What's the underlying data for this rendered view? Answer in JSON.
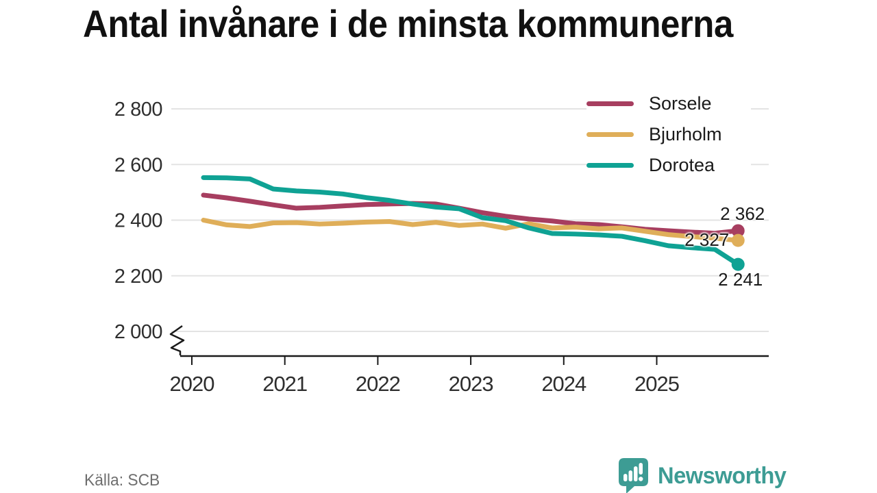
{
  "title": "Antal invånare i de minsta kommunerna",
  "source": "Källa: SCB",
  "branding": {
    "logo_text": "Newsworthy",
    "logo_color": "#3d9c94"
  },
  "chart_data": {
    "type": "line",
    "title": "Antal invånare i de minsta kommunerna",
    "grid": "horizontal",
    "legend_position": "top-right",
    "x": [
      2020.125,
      2020.375,
      2020.625,
      2020.875,
      2021.125,
      2021.375,
      2021.625,
      2021.875,
      2022.125,
      2022.375,
      2022.625,
      2022.875,
      2023.125,
      2023.375,
      2023.625,
      2023.875,
      2024.125,
      2024.375,
      2024.625,
      2024.875,
      2025.125,
      2025.375,
      2025.625,
      2025.875
    ],
    "x_axis": {
      "unit": "year",
      "ticks": [
        {
          "value": 2020,
          "label": "2020"
        },
        {
          "value": 2021,
          "label": "2021"
        },
        {
          "value": 2022,
          "label": "2022"
        },
        {
          "value": 2023,
          "label": "2023"
        },
        {
          "value": 2024,
          "label": "2024"
        },
        {
          "value": 2025,
          "label": "2025"
        }
      ]
    },
    "y_axis": {
      "range_shown": [
        2000,
        2800
      ],
      "break_at_bottom": true,
      "ticks": [
        {
          "value": 2800,
          "label": "2 800"
        },
        {
          "value": 2600,
          "label": "2 600"
        },
        {
          "value": 2400,
          "label": "2 400"
        },
        {
          "value": 2200,
          "label": "2 200"
        },
        {
          "value": 2000,
          "label": "2 000"
        }
      ]
    },
    "series": [
      {
        "name": "Sorsele",
        "color": "#a73e60",
        "end_label": "2 362",
        "end_value": 2362,
        "values": [
          2490,
          2480,
          2468,
          2455,
          2443,
          2446,
          2451,
          2456,
          2458,
          2460,
          2458,
          2443,
          2427,
          2414,
          2404,
          2397,
          2387,
          2384,
          2376,
          2367,
          2362,
          2357,
          2353,
          2362
        ]
      },
      {
        "name": "Bjurholm",
        "color": "#dfae59",
        "end_label": "2 327",
        "end_value": 2327,
        "values": [
          2400,
          2383,
          2377,
          2390,
          2391,
          2386,
          2389,
          2393,
          2395,
          2384,
          2392,
          2381,
          2386,
          2371,
          2387,
          2372,
          2375,
          2369,
          2372,
          2360,
          2348,
          2341,
          2335,
          2327
        ]
      },
      {
        "name": "Dorotea",
        "color": "#0fa294",
        "end_label": "2 241",
        "end_value": 2241,
        "values": [
          2553,
          2552,
          2548,
          2512,
          2505,
          2501,
          2494,
          2481,
          2471,
          2458,
          2447,
          2441,
          2409,
          2398,
          2372,
          2352,
          2350,
          2347,
          2342,
          2326,
          2308,
          2301,
          2295,
          2241
        ]
      }
    ]
  }
}
